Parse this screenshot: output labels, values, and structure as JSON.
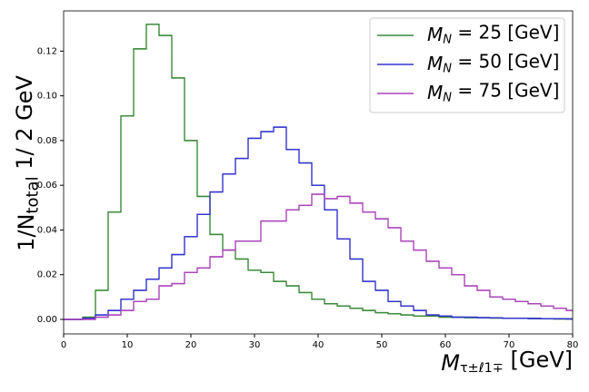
{
  "chart_data": {
    "type": "step-histogram",
    "xlabel": {
      "base": "M",
      "sub": "τ±ℓ1∓",
      "rest": " [GeV]"
    },
    "ylabel": {
      "base": "1/N",
      "sub": "total",
      "rest": " 1/ 2 GeV"
    },
    "bins": [
      -1,
      1,
      3,
      5,
      7,
      9,
      11,
      13,
      15,
      17,
      19,
      21,
      23,
      25,
      27,
      29,
      31,
      33,
      35,
      37,
      39,
      41,
      43,
      45,
      47,
      49,
      51,
      53,
      55,
      57,
      59,
      61,
      63,
      65,
      67,
      69,
      71,
      73,
      75,
      77,
      79,
      81
    ],
    "series": [
      {
        "label": {
          "base": "M",
          "sub": "N",
          "rest": " = 25 [GeV]"
        },
        "color": "#3a8a3a",
        "values": [
          0,
          0,
          0.001,
          0.013,
          0.048,
          0.091,
          0.121,
          0.132,
          0.127,
          0.108,
          0.08,
          0.055,
          0.038,
          0.031,
          0.027,
          0.022,
          0.021,
          0.017,
          0.015,
          0.012,
          0.009,
          0.007,
          0.006,
          0.005,
          0.004,
          0.003,
          0.0025,
          0.002,
          0.0015,
          0.0015,
          0.001,
          0.001,
          0.0008,
          0.0007,
          0.0006,
          0.0005,
          0.0005,
          0.0004,
          0.0003,
          0.0002,
          0.0002
        ]
      },
      {
        "label": {
          "base": "M",
          "sub": "N",
          "rest": " = 50 [GeV]"
        },
        "color": "#3333cc",
        "values": [
          0,
          0,
          0.0005,
          0.002,
          0.004,
          0.009,
          0.013,
          0.018,
          0.023,
          0.029,
          0.037,
          0.047,
          0.057,
          0.065,
          0.072,
          0.081,
          0.084,
          0.086,
          0.076,
          0.07,
          0.06,
          0.049,
          0.036,
          0.027,
          0.017,
          0.013,
          0.008,
          0.006,
          0.004,
          0.002,
          0.0015,
          0.001,
          0.001,
          0.0008,
          0.0007,
          0.0005,
          0.0005,
          0.0004,
          0.0003,
          0.0003,
          0.0002
        ]
      },
      {
        "label": {
          "base": "M",
          "sub": "N",
          "rest": " = 75 [GeV]"
        },
        "color": "#aa44bb",
        "values": [
          0,
          0,
          0,
          0.001,
          0.002,
          0.004,
          0.008,
          0.009,
          0.015,
          0.016,
          0.021,
          0.023,
          0.028,
          0.031,
          0.035,
          0.035,
          0.044,
          0.044,
          0.049,
          0.051,
          0.056,
          0.054,
          0.055,
          0.052,
          0.048,
          0.045,
          0.041,
          0.035,
          0.031,
          0.026,
          0.023,
          0.02,
          0.015,
          0.013,
          0.01,
          0.009,
          0.008,
          0.007,
          0.006,
          0.005,
          0.004
        ]
      }
    ],
    "xlim": [
      0,
      80
    ],
    "xticks": [
      0,
      10,
      20,
      30,
      40,
      50,
      60,
      70,
      80
    ],
    "ylim": [
      -0.0065,
      0.138
    ],
    "yticks": [
      {
        "value": 0,
        "label": "0.00"
      },
      {
        "value": 0.02,
        "label": "0.02"
      },
      {
        "value": 0.04,
        "label": "0.04"
      },
      {
        "value": 0.06,
        "label": "0.06"
      },
      {
        "value": 0.08,
        "label": "0.08"
      },
      {
        "value": 0.1,
        "label": "0.10"
      },
      {
        "value": 0.12,
        "label": "0.12"
      }
    ],
    "legend": "upper right",
    "grid": false
  }
}
